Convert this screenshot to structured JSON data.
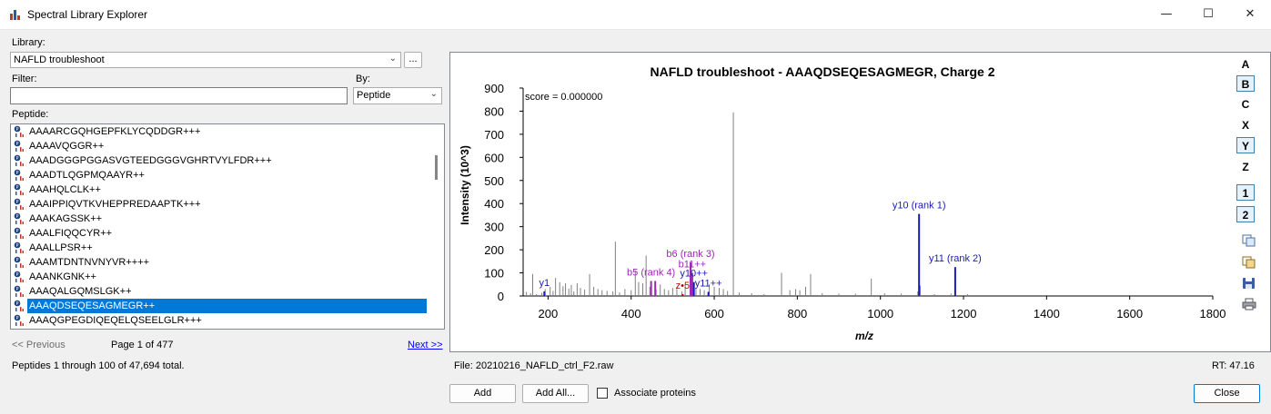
{
  "window": {
    "title": "Spectral Library Explorer",
    "controls": [
      "—",
      "☐",
      "✕"
    ]
  },
  "library": {
    "label": "Library:",
    "value": "NAFLD troubleshoot",
    "browse_label": "..."
  },
  "filter": {
    "label": "Filter:",
    "value": "",
    "placeholder": ""
  },
  "by": {
    "label": "By:",
    "value": "Peptide"
  },
  "peptide_list": {
    "label": "Peptide:",
    "selected_index": 12,
    "items": [
      "AAAARCGQHGEPFKLYCQDDGR+++",
      "AAAAVQGGR++",
      "AAADGGGPGGASVGTEEDGGGVGHRTVYLFDR+++",
      "AAADTLQGPMQAAYR++",
      "AAAHQLCLK++",
      "AAAIPPIQVTKVHEPPREDAAPTK+++",
      "AAAKAGSSK++",
      "AAALFIQQCYR++",
      "AAALLPSR++",
      "AAAMTDNTNVNYVR++++",
      "AAANKGNK++",
      "AAAQALGQMSLGK++",
      "AAAQDSEQESAGMEGR++",
      "AAAQGPEGDIQEQELQSEELGLR+++"
    ]
  },
  "pagination": {
    "prev_label": "<< Previous",
    "page_text": "Page 1 of 477",
    "next_label": "Next >>",
    "total_text": "Peptides 1 through 100 of 47,694 total."
  },
  "chart_data": {
    "type": "bar",
    "title": "NAFLD troubleshoot - AAAQDSEQESAGMEGR, Charge 2",
    "xlabel": "m/z",
    "ylabel": "Intensity (10^3)",
    "xlim": [
      140,
      1800
    ],
    "ylim": [
      0,
      900
    ],
    "xticks": [
      200,
      400,
      600,
      800,
      1000,
      1200,
      1400,
      1600,
      1800
    ],
    "yticks": [
      0,
      100,
      200,
      300,
      400,
      500,
      600,
      700,
      800,
      900
    ],
    "score_text": "score = 0.000000",
    "grid": false,
    "unmatched_color": "#808080",
    "b_color": "#9c27b0",
    "y_color": "#1a1ab8",
    "z_color": "#c00000",
    "peaks": [
      [
        148,
        18
      ],
      [
        158,
        12
      ],
      [
        163,
        95
      ],
      [
        172,
        8
      ],
      [
        185,
        14
      ],
      [
        193,
        30
      ],
      [
        205,
        40
      ],
      [
        212,
        22
      ],
      [
        218,
        78
      ],
      [
        228,
        60
      ],
      [
        236,
        42
      ],
      [
        242,
        55
      ],
      [
        250,
        32
      ],
      [
        256,
        48
      ],
      [
        262,
        20
      ],
      [
        270,
        55
      ],
      [
        278,
        35
      ],
      [
        288,
        28
      ],
      [
        300,
        95
      ],
      [
        310,
        40
      ],
      [
        320,
        30
      ],
      [
        330,
        25
      ],
      [
        342,
        22
      ],
      [
        356,
        20
      ],
      [
        362,
        235
      ],
      [
        372,
        15
      ],
      [
        385,
        30
      ],
      [
        400,
        25
      ],
      [
        410,
        110
      ],
      [
        418,
        60
      ],
      [
        428,
        55
      ],
      [
        436,
        175
      ],
      [
        445,
        40
      ],
      [
        460,
        28
      ],
      [
        470,
        50
      ],
      [
        480,
        30
      ],
      [
        490,
        25
      ],
      [
        500,
        35
      ],
      [
        510,
        30
      ],
      [
        522,
        20
      ],
      [
        530,
        48
      ],
      [
        545,
        90
      ],
      [
        556,
        35
      ],
      [
        566,
        30
      ],
      [
        576,
        25
      ],
      [
        588,
        50
      ],
      [
        600,
        40
      ],
      [
        612,
        35
      ],
      [
        622,
        30
      ],
      [
        632,
        22
      ],
      [
        646,
        795
      ],
      [
        660,
        15
      ],
      [
        690,
        12
      ],
      [
        720,
        8
      ],
      [
        762,
        100
      ],
      [
        782,
        25
      ],
      [
        796,
        30
      ],
      [
        806,
        25
      ],
      [
        820,
        40
      ],
      [
        832,
        95
      ],
      [
        860,
        12
      ],
      [
        900,
        10
      ],
      [
        940,
        10
      ],
      [
        978,
        75
      ],
      [
        1010,
        12
      ],
      [
        1050,
        10
      ],
      [
        1090,
        20
      ],
      [
        1096,
        45
      ],
      [
        1130,
        8
      ],
      [
        1170,
        10
      ],
      [
        1210,
        8
      ]
    ],
    "matched": [
      {
        "mz": 191,
        "intensity": 20,
        "ion": "y",
        "label": "y1"
      },
      {
        "mz": 448,
        "intensity": 65,
        "ion": "b",
        "label": "b5 (rank 4)"
      },
      {
        "mz": 458,
        "intensity": 65,
        "ion": "b",
        "label": ""
      },
      {
        "mz": 543,
        "intensity": 145,
        "ion": "b",
        "label": "b6 (rank 3)"
      },
      {
        "mz": 547,
        "intensity": 100,
        "ion": "b",
        "label": "b11++"
      },
      {
        "mz": 524,
        "intensity": 8,
        "ion": "z",
        "label": "z•5"
      },
      {
        "mz": 551,
        "intensity": 60,
        "ion": "y",
        "label": "y10++"
      },
      {
        "mz": 586,
        "intensity": 18,
        "ion": "y",
        "label": "y11++"
      },
      {
        "mz": 1093,
        "intensity": 355,
        "ion": "y",
        "label": "y10 (rank 1)"
      },
      {
        "mz": 1180,
        "intensity": 125,
        "ion": "y",
        "label": "y11 (rank 2)"
      }
    ]
  },
  "ion_buttons": [
    {
      "label": "A",
      "active": false
    },
    {
      "label": "B",
      "active": true
    },
    {
      "label": "C",
      "active": false
    },
    {
      "label": "X",
      "active": false
    },
    {
      "label": "Y",
      "active": true
    },
    {
      "label": "Z",
      "active": false
    },
    {
      "label": "1",
      "active": true
    },
    {
      "label": "2",
      "active": true
    }
  ],
  "side_tools": [
    "copy-icon",
    "copy-data-icon",
    "save-icon",
    "print-icon"
  ],
  "status": {
    "file_text": "File: 20210216_NAFLD_ctrl_F2.raw",
    "rt_text": "RT: 47.16"
  },
  "bottom": {
    "add_label": "Add",
    "add_all_label": "Add All...",
    "associate_label": "Associate proteins",
    "associate_checked": false,
    "close_label": "Close"
  }
}
